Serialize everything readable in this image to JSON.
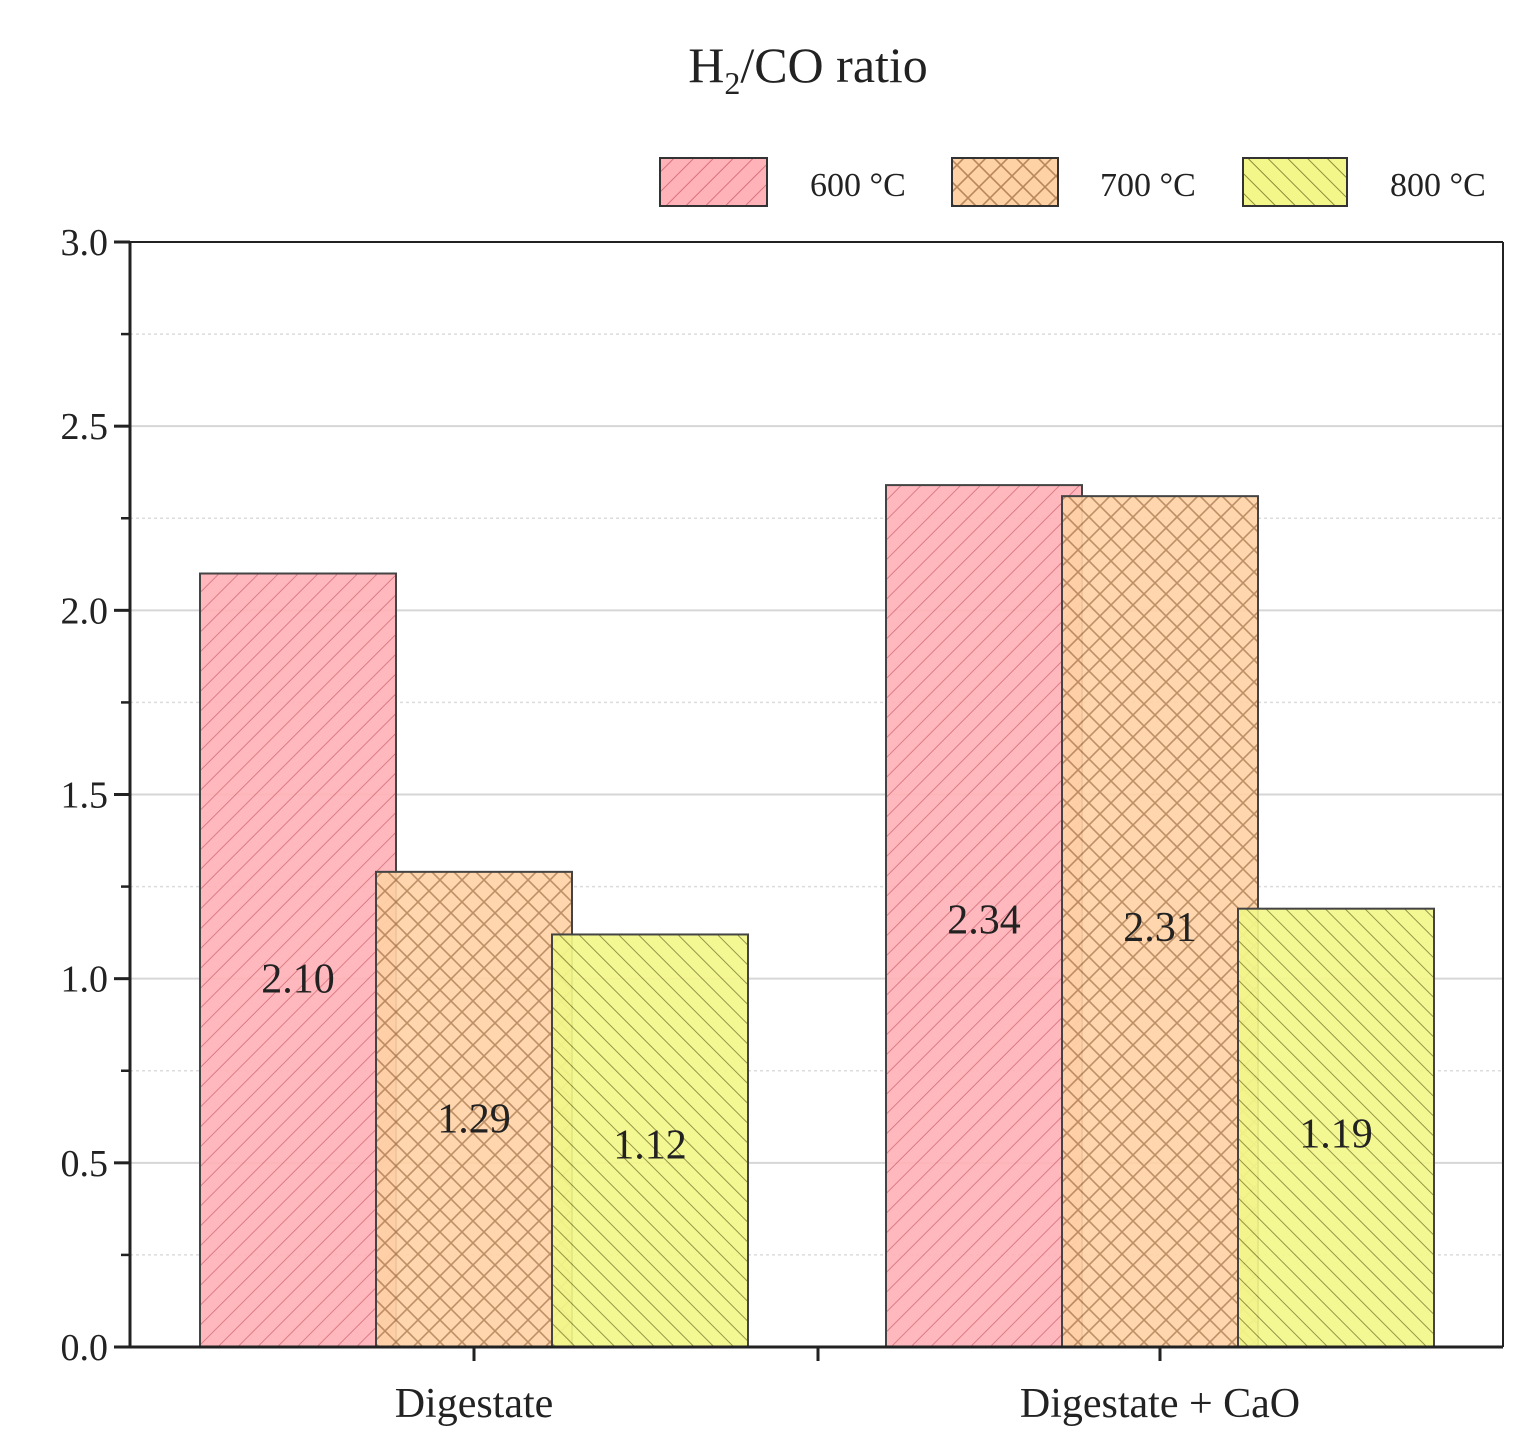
{
  "chart_data": {
    "type": "bar",
    "title": "H2/CO ratio",
    "title_main": "H",
    "title_sub": "2",
    "title_rest": "/CO ratio",
    "xlabel": "",
    "ylabel": "",
    "ylim": [
      0,
      3.0
    ],
    "yticks": [
      0.0,
      0.5,
      1.0,
      1.5,
      2.0,
      2.5,
      3.0
    ],
    "ytick_labels": [
      "0.0",
      "0.5",
      "1.0",
      "1.5",
      "2.0",
      "2.5",
      "3.0"
    ],
    "categories": [
      "Digestate",
      "Digestate + CaO"
    ],
    "series": [
      {
        "name": "600 °C",
        "values": [
          2.1,
          2.34
        ],
        "labels": [
          "2.10",
          "2.34"
        ],
        "color": "#ffb3b8",
        "edge": "#e06070",
        "pattern": "diag-right"
      },
      {
        "name": "700 °C",
        "values": [
          1.29,
          2.31
        ],
        "labels": [
          "1.29",
          "2.31"
        ],
        "color": "#ffd2a6",
        "edge": "#e08a4a",
        "pattern": "crosshatch"
      },
      {
        "name": "800 °C",
        "values": [
          1.12,
          1.19
        ],
        "labels": [
          "1.12",
          "1.19"
        ],
        "color": "#f3f78a",
        "edge": "#b5b840",
        "pattern": "diag-left"
      }
    ],
    "grid": true,
    "legend_position": "top-right"
  }
}
